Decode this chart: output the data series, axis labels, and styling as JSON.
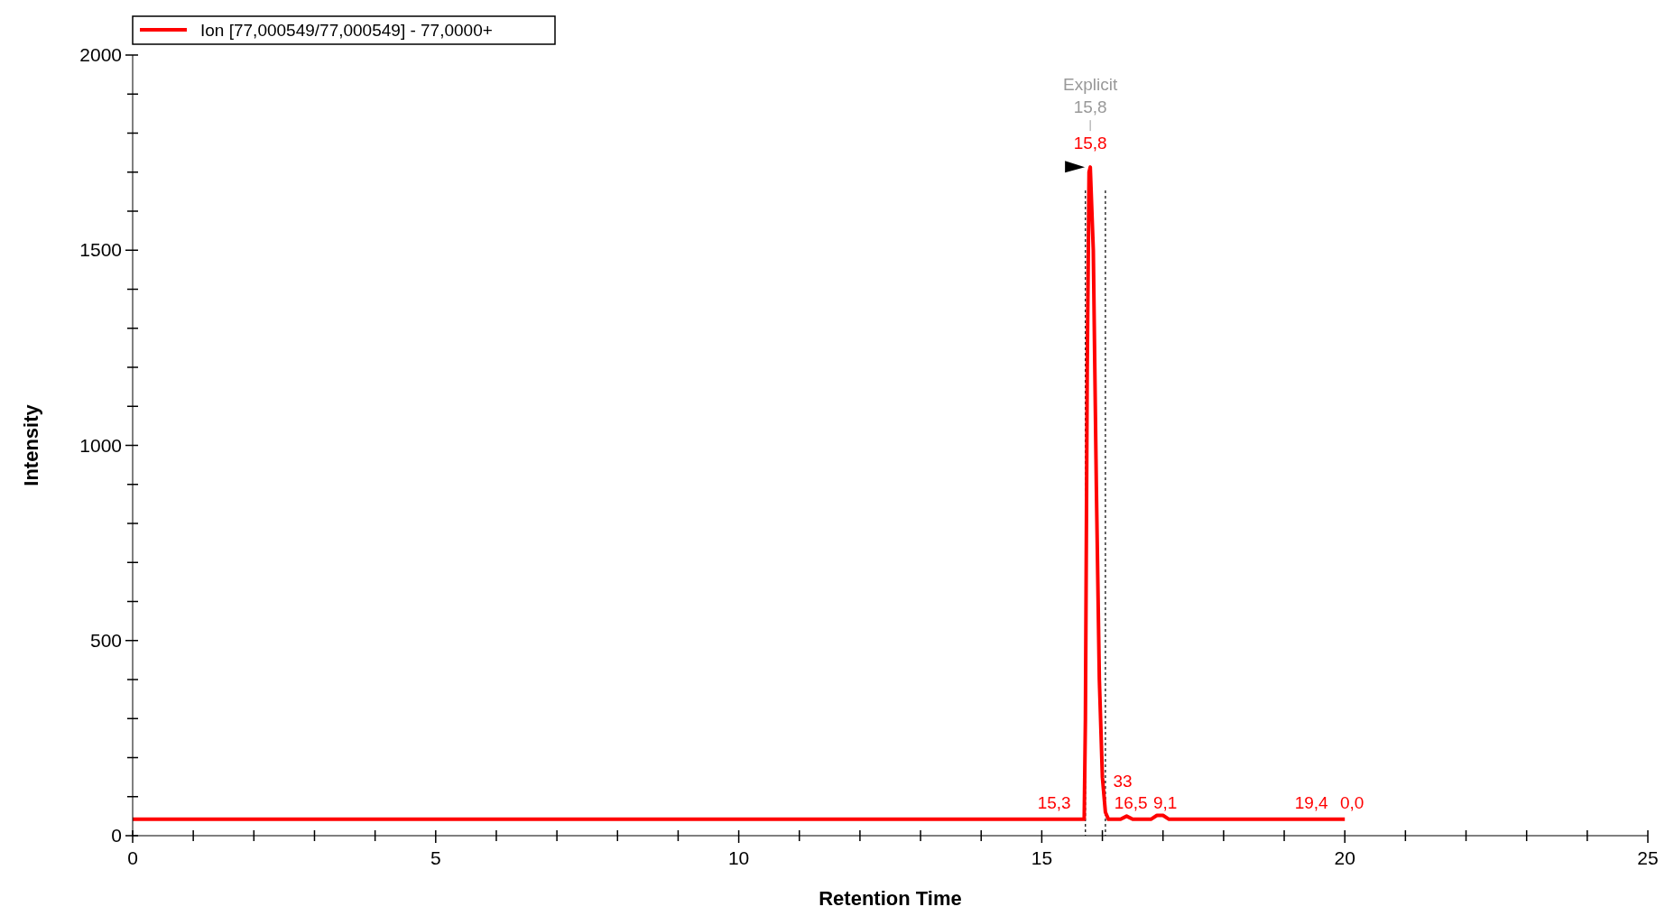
{
  "chart_data": {
    "type": "line",
    "xlabel": "Retention Time",
    "ylabel": "Intensity",
    "legend": "top left",
    "line_style": "solid",
    "xlim": [
      0,
      25
    ],
    "ylim": [
      0,
      2000
    ],
    "xticks": [
      0,
      {
        "value": 1,
        "label": null
      },
      {
        "value": 2,
        "label": null
      },
      {
        "value": 3,
        "label": null
      },
      {
        "value": 4,
        "label": null
      },
      5,
      {
        "value": 6,
        "label": null
      },
      {
        "value": 7,
        "label": null
      },
      {
        "value": 8,
        "label": null
      },
      {
        "value": 9,
        "label": null
      },
      10,
      {
        "value": 11,
        "label": null
      },
      {
        "value": 12,
        "label": null
      },
      {
        "value": 13,
        "label": null
      },
      {
        "value": 14,
        "label": null
      },
      15,
      {
        "value": 16,
        "label": null
      },
      {
        "value": 17,
        "label": null
      },
      {
        "value": 18,
        "label": null
      },
      {
        "value": 19,
        "label": null
      },
      20,
      {
        "value": 21,
        "label": null
      },
      {
        "value": 22,
        "label": null
      },
      {
        "value": 23,
        "label": null
      },
      {
        "value": 24,
        "label": null
      },
      25
    ],
    "yticks": [
      0,
      {
        "value": 100,
        "label": null
      },
      {
        "value": 200,
        "label": null
      },
      {
        "value": 300,
        "label": null
      },
      {
        "value": 400,
        "label": null
      },
      500,
      {
        "value": 600,
        "label": null
      },
      {
        "value": 700,
        "label": null
      },
      {
        "value": 800,
        "label": null
      },
      {
        "value": 900,
        "label": null
      },
      1000,
      {
        "value": 1100,
        "label": null
      },
      {
        "value": 1200,
        "label": null
      },
      {
        "value": 1300,
        "label": null
      },
      {
        "value": 1400,
        "label": null
      },
      1500,
      {
        "value": 1600,
        "label": null
      },
      {
        "value": 1700,
        "label": null
      },
      {
        "value": 1800,
        "label": null
      },
      {
        "value": 1900,
        "label": null
      },
      2000
    ],
    "series": [
      {
        "name": "Ion [77,000549/77,000549] - 77,0000+",
        "color": "#ff0000",
        "x": [
          0,
          15.6,
          15.7,
          15.72,
          15.75,
          15.78,
          15.8,
          15.85,
          15.9,
          15.95,
          16.0,
          16.05,
          16.1,
          16.3,
          16.4,
          16.5,
          16.8,
          16.9,
          17.0,
          17.1,
          20
        ],
        "values": [
          42,
          42,
          42,
          300,
          1200,
          1700,
          1713,
          1500,
          900,
          400,
          150,
          60,
          42,
          42,
          50,
          42,
          42,
          52,
          52,
          42,
          42
        ]
      }
    ],
    "ref_lines": [
      {
        "axis": "x",
        "value": 15.72,
        "color": "#000000",
        "line_style": "dashed"
      },
      {
        "axis": "x",
        "value": 16.05,
        "color": "#000000",
        "line_style": "dashed"
      }
    ],
    "annotations": [
      "Explicit",
      "15,8",
      "15,8",
      "15,3",
      "33",
      "16,5",
      "9,1",
      "19,4",
      "0,0"
    ]
  }
}
